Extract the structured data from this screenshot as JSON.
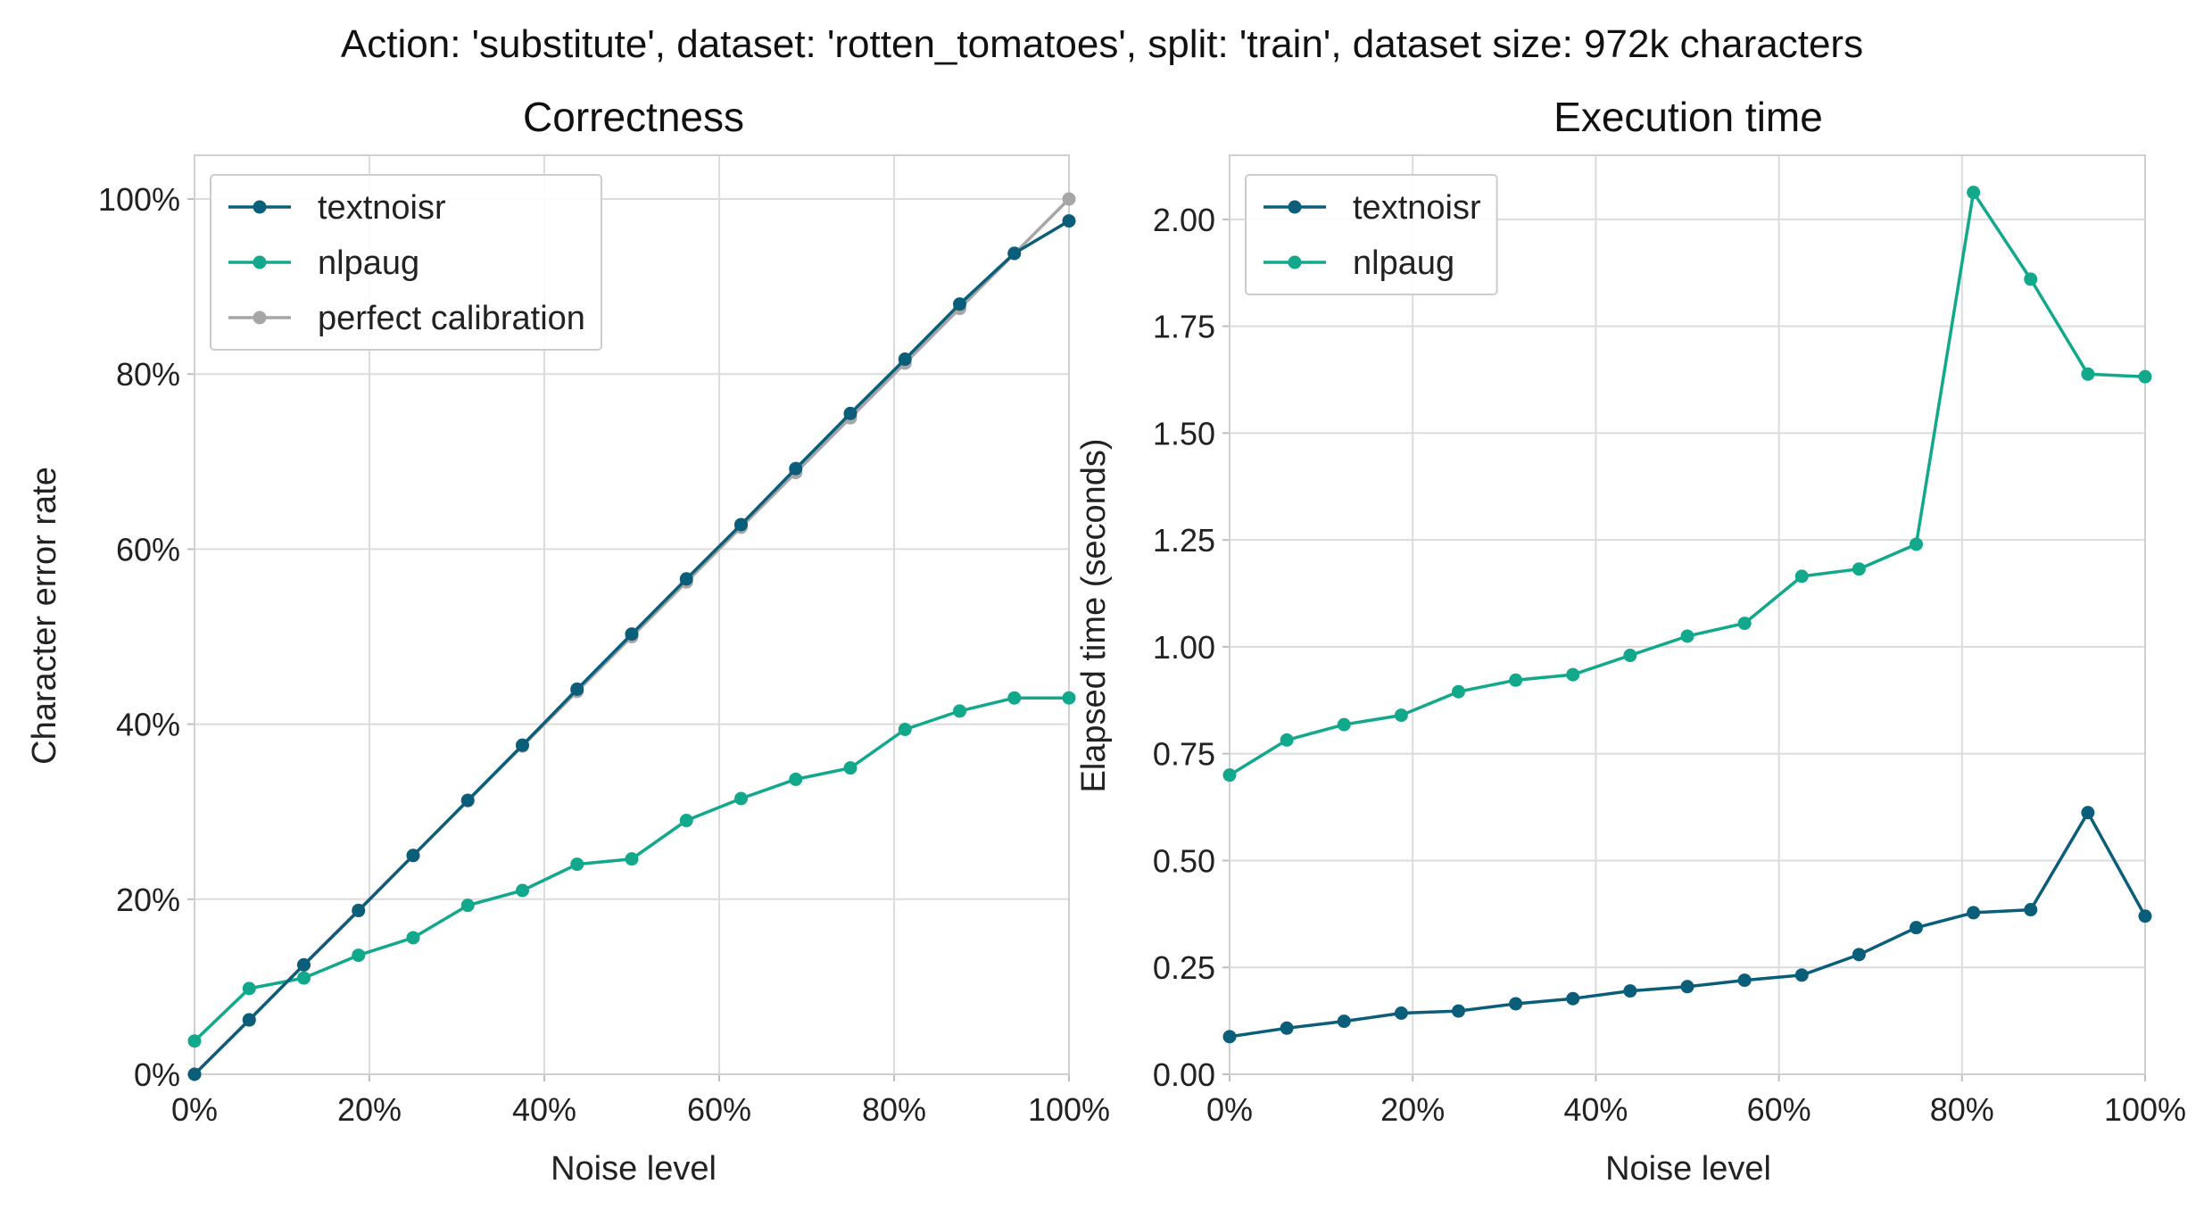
{
  "suptitle": "Action: 'substitute', dataset: 'rotten_tomatoes', split: 'train', dataset size: 972k characters",
  "chart_data": [
    {
      "type": "line",
      "title": "Correctness",
      "xlabel": "Noise level",
      "ylabel": "Character error rate",
      "xlim": [
        0,
        1.0
      ],
      "ylim": [
        0,
        1.05
      ],
      "xticks": [
        0,
        0.2,
        0.4,
        0.6,
        0.8,
        1.0
      ],
      "xtick_labels": [
        "0%",
        "20%",
        "40%",
        "60%",
        "80%",
        "100%"
      ],
      "yticks": [
        0,
        0.2,
        0.4,
        0.6,
        0.8,
        1.0
      ],
      "ytick_labels": [
        "0%",
        "20%",
        "40%",
        "60%",
        "80%",
        "100%"
      ],
      "grid": true,
      "legend_position": "top-left",
      "x": [
        0,
        0.0625,
        0.125,
        0.1875,
        0.25,
        0.3125,
        0.375,
        0.4375,
        0.5,
        0.5625,
        0.625,
        0.6875,
        0.75,
        0.8125,
        0.875,
        0.9375,
        1.0
      ],
      "series": [
        {
          "name": "textnoisr",
          "color": "#0b5e7a",
          "values": [
            0.0,
            0.062,
            0.125,
            0.187,
            0.25,
            0.313,
            0.376,
            0.44,
            0.503,
            0.566,
            0.628,
            0.692,
            0.755,
            0.817,
            0.88,
            0.938,
            0.975
          ]
        },
        {
          "name": "nlpaug",
          "color": "#12a88c",
          "values": [
            0.038,
            0.098,
            0.11,
            0.136,
            0.156,
            0.193,
            0.21,
            0.24,
            0.246,
            0.29,
            0.315,
            0.337,
            0.35,
            0.394,
            0.415,
            0.43,
            0.43
          ]
        },
        {
          "name": "perfect calibration",
          "color": "#a6a6a6",
          "values": [
            0,
            0.0625,
            0.125,
            0.1875,
            0.25,
            0.3125,
            0.375,
            0.4375,
            0.5,
            0.5625,
            0.625,
            0.6875,
            0.75,
            0.8125,
            0.875,
            0.9375,
            1.0
          ]
        }
      ]
    },
    {
      "type": "line",
      "title": "Execution time",
      "xlabel": "Noise level",
      "ylabel": "Elapsed time (seconds)",
      "xlim": [
        0,
        1.0
      ],
      "ylim": [
        0,
        2.15
      ],
      "xticks": [
        0,
        0.2,
        0.4,
        0.6,
        0.8,
        1.0
      ],
      "xtick_labels": [
        "0%",
        "20%",
        "40%",
        "60%",
        "80%",
        "100%"
      ],
      "yticks": [
        0,
        0.25,
        0.5,
        0.75,
        1.0,
        1.25,
        1.5,
        1.75,
        2.0
      ],
      "ytick_labels": [
        "0.00",
        "0.25",
        "0.50",
        "0.75",
        "1.00",
        "1.25",
        "1.50",
        "1.75",
        "2.00"
      ],
      "grid": true,
      "legend_position": "top-left",
      "x": [
        0,
        0.0625,
        0.125,
        0.1875,
        0.25,
        0.3125,
        0.375,
        0.4375,
        0.5,
        0.5625,
        0.625,
        0.6875,
        0.75,
        0.8125,
        0.875,
        0.9375,
        1.0
      ],
      "series": [
        {
          "name": "textnoisr",
          "color": "#0b5e7a",
          "values": [
            0.088,
            0.108,
            0.124,
            0.143,
            0.148,
            0.165,
            0.177,
            0.195,
            0.205,
            0.22,
            0.232,
            0.28,
            0.343,
            0.378,
            0.385,
            0.612,
            0.37
          ]
        },
        {
          "name": "nlpaug",
          "color": "#12a88c",
          "values": [
            0.7,
            0.782,
            0.818,
            0.84,
            0.895,
            0.922,
            0.935,
            0.98,
            1.025,
            1.055,
            1.165,
            1.182,
            1.24,
            2.063,
            1.86,
            1.638,
            1.632
          ]
        }
      ]
    }
  ]
}
